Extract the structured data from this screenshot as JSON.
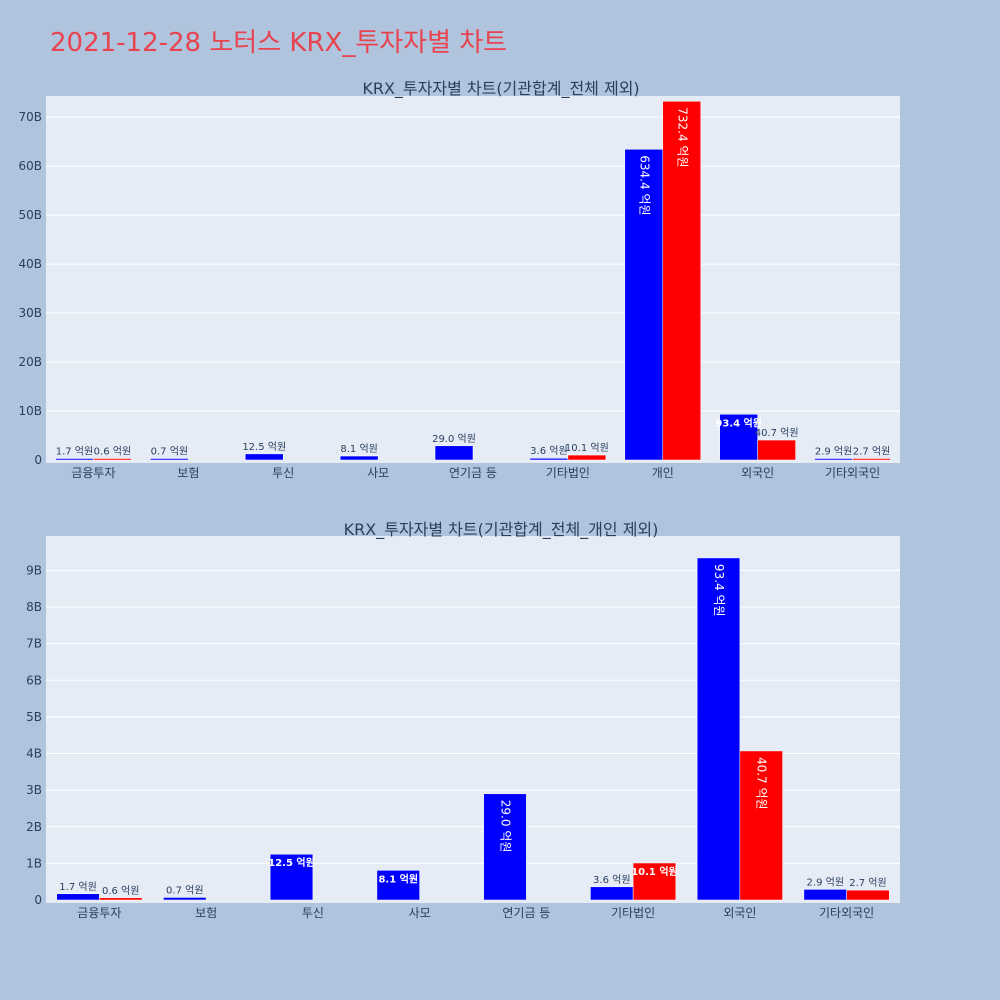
{
  "page": {
    "title": "2021-12-28 노터스 KRX_투자자별 차트",
    "colors": {
      "buy": "#0000ff",
      "sell": "#ff0000",
      "plot_bg": "#e5ecf6",
      "page_bg": "#b0c4de",
      "title": "#e8434f"
    }
  },
  "chart_data": [
    {
      "type": "bar",
      "title": "KRX_투자자별 차트(기관합계_전체 제외)",
      "categories": [
        "금융투자",
        "보험",
        "투신",
        "사모",
        "연기금 등",
        "기타법인",
        "개인",
        "외국인",
        "기타외국인"
      ],
      "series": [
        {
          "color": "#0000ff",
          "values": [
            0.17,
            0.07,
            1.25,
            0.81,
            2.9,
            0.36,
            63.44,
            9.34,
            0.29
          ],
          "labels": [
            "1.7 억원",
            "0.7 억원",
            "12.5 억원",
            "8.1 억원",
            "29.0 억원",
            "3.6 억원",
            "634.4 억원",
            "93.4 억원",
            "2.9 억원"
          ]
        },
        {
          "color": "#ff0000",
          "values": [
            0.06,
            null,
            null,
            null,
            null,
            1.01,
            73.24,
            4.07,
            0.27
          ],
          "labels": [
            "0.6 억원",
            "",
            "",
            "",
            "",
            "10.1 억원",
            "732.4 억원",
            "40.7 억원",
            "2.7 억원"
          ]
        }
      ],
      "ylim": [
        0,
        73.5
      ],
      "yticks": [
        0,
        10,
        20,
        30,
        40,
        50,
        60,
        70
      ],
      "ytick_labels": [
        "0",
        "10B",
        "20B",
        "30B",
        "40B",
        "50B",
        "60B",
        "70B"
      ],
      "grid": true
    },
    {
      "type": "bar",
      "title": "KRX_투자자별 차트(기관합계_전체_개인 제외)",
      "categories": [
        "금융투자",
        "보험",
        "투신",
        "사모",
        "연기금 등",
        "기타법인",
        "외국인",
        "기타외국인"
      ],
      "series": [
        {
          "color": "#0000ff",
          "values": [
            0.17,
            0.07,
            1.25,
            0.81,
            2.9,
            0.36,
            9.34,
            0.29
          ],
          "labels": [
            "1.7 억원",
            "0.7 억원",
            "12.5 억원",
            "8.1 억원",
            "29.0 억원",
            "3.6 억원",
            "93.4 억원",
            "2.9 억원"
          ]
        },
        {
          "color": "#ff0000",
          "values": [
            0.06,
            null,
            null,
            null,
            null,
            1.01,
            4.07,
            0.27
          ],
          "labels": [
            "0.6 억원",
            "",
            "",
            "",
            "",
            "10.1 억원",
            "40.7 억원",
            "2.7 억원"
          ]
        }
      ],
      "ylim": [
        0,
        9.83
      ],
      "yticks": [
        0,
        1,
        2,
        3,
        4,
        5,
        6,
        7,
        8,
        9
      ],
      "ytick_labels": [
        "0",
        "1B",
        "2B",
        "3B",
        "4B",
        "5B",
        "6B",
        "7B",
        "8B",
        "9B"
      ],
      "grid": true
    }
  ]
}
